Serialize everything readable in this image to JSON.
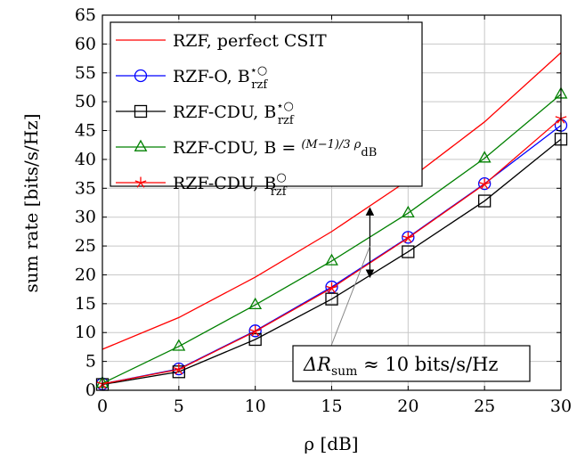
{
  "chart_data": {
    "type": "line",
    "xlabel": "ρ [dB]",
    "ylabel": "sum rate [bits/s/Hz]",
    "xlim": [
      0,
      30
    ],
    "ylim": [
      0,
      65
    ],
    "x_ticks": [
      0,
      5,
      10,
      15,
      20,
      25,
      30
    ],
    "y_ticks": [
      0,
      5,
      10,
      15,
      20,
      25,
      30,
      35,
      40,
      45,
      50,
      55,
      60,
      65
    ],
    "grid": true,
    "legend_position": "top-left",
    "x": [
      0,
      5,
      10,
      15,
      20,
      25,
      30
    ],
    "series": [
      {
        "name": "RZF, perfect CSIT",
        "color": "#ff0000",
        "marker": "none",
        "values": [
          7.1,
          12.6,
          19.6,
          27.5,
          36.4,
          46.5,
          58.5
        ]
      },
      {
        "name": "RZF-O, B",
        "name_sup": "⋆○",
        "name_sub": "rzf",
        "color": "#0000ff",
        "marker": "circle",
        "values": [
          1.1,
          3.7,
          10.3,
          17.9,
          26.5,
          35.8,
          45.9
        ]
      },
      {
        "name": "RZF-CDU, B",
        "name_sup": "⋆○",
        "name_sub": "rzf",
        "color": "#000000",
        "marker": "square",
        "values": [
          1.0,
          3.2,
          8.8,
          15.8,
          24.0,
          32.8,
          43.5
        ]
      },
      {
        "name": "RZF-CDU, B = ",
        "name_math": "(M−1)/3 ρ",
        "name_sub": "dB",
        "color": "#008000",
        "marker": "triangle",
        "values": [
          1.2,
          7.6,
          14.8,
          22.4,
          30.7,
          40.2,
          51.3
        ]
      },
      {
        "name": "RZF-CDU, B",
        "name_sup": "○",
        "name_sub": "rzf",
        "color": "#ff0000",
        "marker": "star",
        "values": [
          1.1,
          3.6,
          10.2,
          17.7,
          26.4,
          35.7,
          47.1
        ]
      }
    ],
    "annotation": {
      "text": "ΔR",
      "text_sub": "sum",
      "text_rest": " ≈ 10 bits/s/Hz",
      "arrow_x": 17.5,
      "arrow_y_top": 31.7,
      "arrow_y_bottom": 19.5
    }
  }
}
